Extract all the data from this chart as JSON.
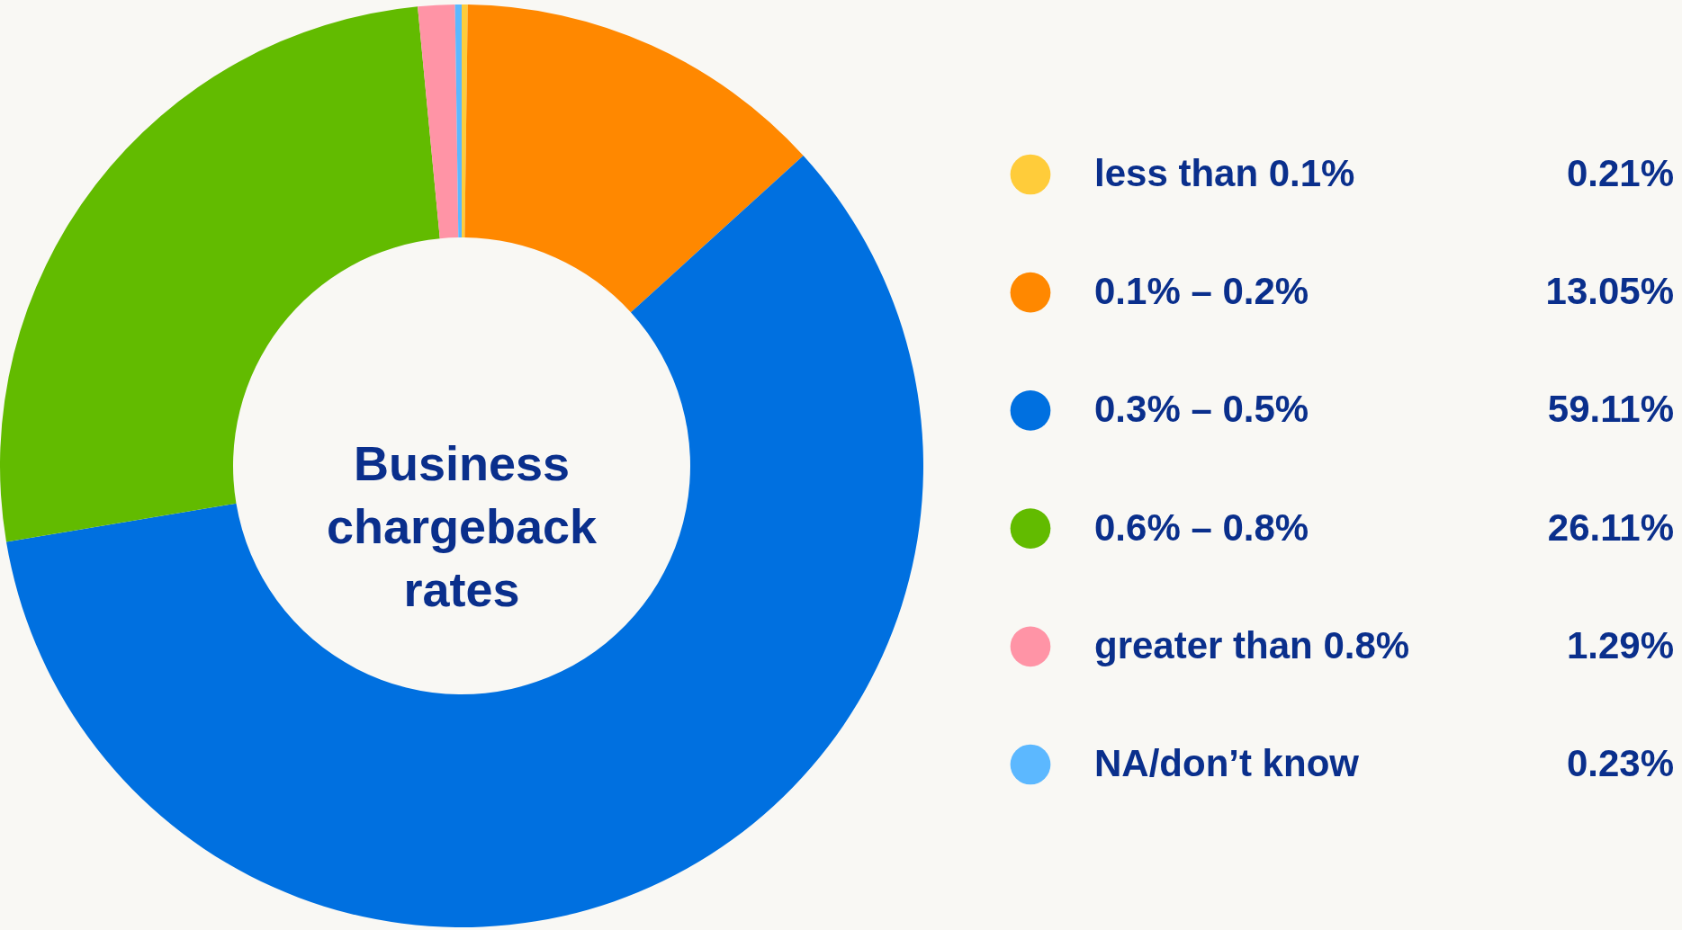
{
  "chart_data": {
    "type": "donut",
    "title": "Business chargeback rates",
    "categories": [
      "less than 0.1%",
      "0.1% – 0.2%",
      "0.3% – 0.5%",
      "0.6% – 0.8%",
      "greater than 0.8%",
      "NA/don’t know"
    ],
    "values": [
      0.21,
      13.05,
      59.11,
      26.11,
      1.29,
      0.23
    ],
    "colors": [
      "#ffcc3a",
      "#ff8800",
      "#0070e0",
      "#62bb00",
      "#ff94a6",
      "#5cb8ff"
    ],
    "value_labels": [
      "0.21%",
      "13.05%",
      "59.11%",
      "26.11%",
      "1.29%",
      "0.23%"
    ],
    "legend": "right"
  }
}
